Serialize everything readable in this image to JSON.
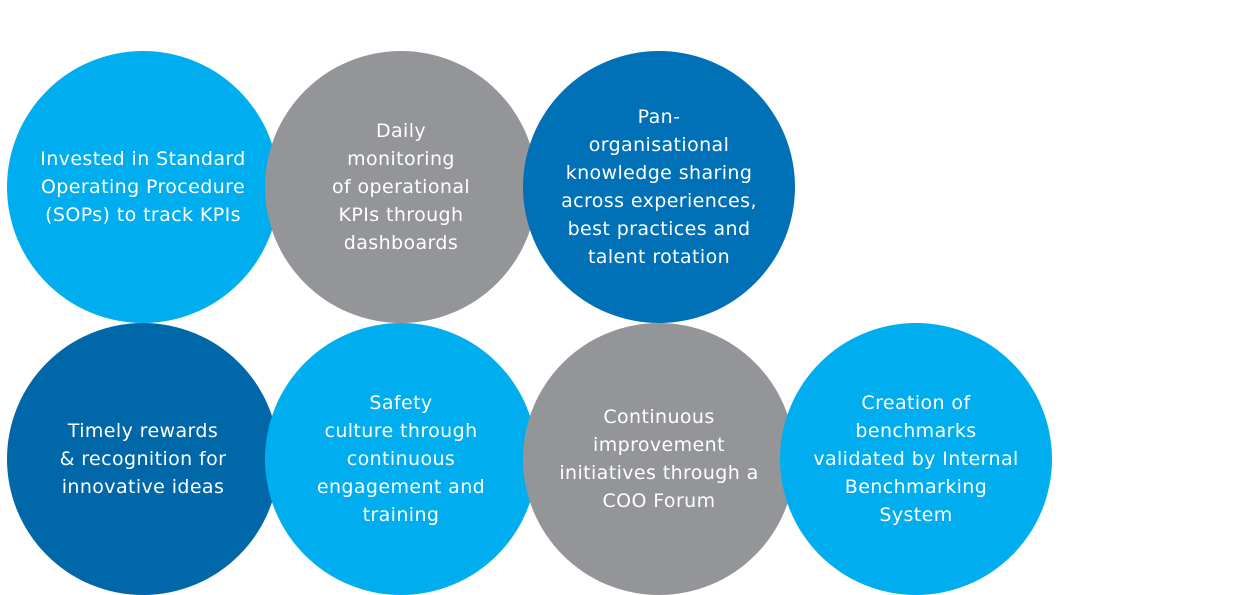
{
  "circles": [
    {
      "color": "#00aeef",
      "lines": [
        "Invested in Standard",
        "Operating Procedure",
        "(SOPs) to track KPIs"
      ]
    },
    {
      "color": "#939598",
      "lines": [
        "Daily",
        "monitoring",
        "of operational",
        "KPIs through",
        "dashboards"
      ]
    },
    {
      "color": "#0071b6",
      "lines": [
        "Pan-",
        "organisational",
        "knowledge sharing",
        "across experiences,",
        "best practices and",
        "talent rotation"
      ]
    },
    {
      "color": "#0067a8",
      "lines": [
        "Timely rewards",
        "& recognition for",
        "innovative ideas"
      ]
    },
    {
      "color": "#00aeef",
      "lines": [
        "Safety",
        "culture through",
        "continuous",
        "engagement and",
        "training"
      ]
    },
    {
      "color": "#939598",
      "lines": [
        "Continuous",
        "improvement",
        "initiatives through a",
        "COO Forum"
      ]
    },
    {
      "color": "#00aeef",
      "lines": [
        "Creation of",
        "benchmarks",
        "validated by Internal",
        "Benchmarking",
        "System"
      ]
    }
  ]
}
